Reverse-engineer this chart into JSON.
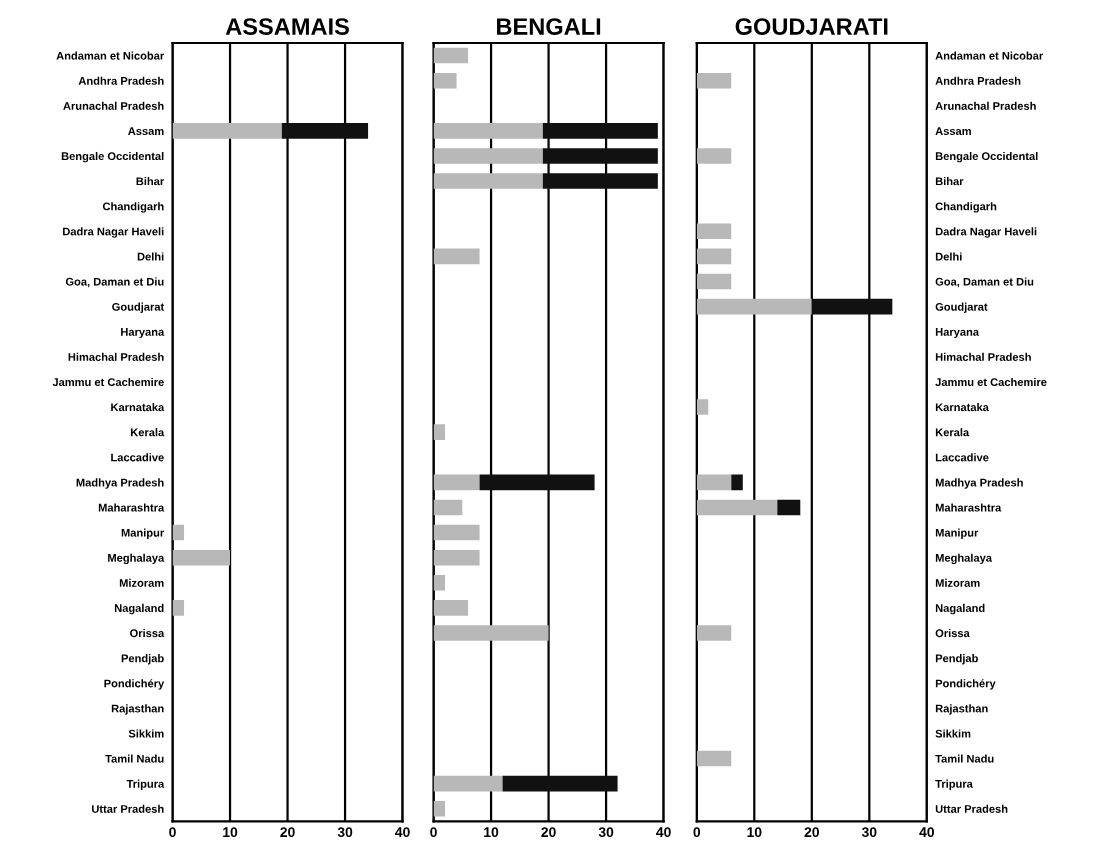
{
  "chart_data": [
    {
      "type": "bar",
      "title": "ASSAMAIS",
      "orientation": "horizontal",
      "stacked": true,
      "grid": "x",
      "categories": [
        "Andaman et Nicobar",
        "Andhra Pradesh",
        "Arunachal Pradesh",
        "Assam",
        "Bengale Occidental",
        "Bihar",
        "Chandigarh",
        "Dadra Nagar Haveli",
        "Delhi",
        "Goa, Daman et Diu",
        "Goudjarat",
        "Haryana",
        "Himachal Pradesh",
        "Jammu et Cachemire",
        "Karnataka",
        "Kerala",
        "Laccadive",
        "Madhya Pradesh",
        "Maharashtra",
        "Manipur",
        "Meghalaya",
        "Mizoram",
        "Nagaland",
        "Orissa",
        "Pendjab",
        "Pondichéry",
        "Rajasthan",
        "Sikkim",
        "Tamil Nadu",
        "Tripura",
        "Uttar Pradesh"
      ],
      "xlim": [
        0,
        40
      ],
      "xticks": [
        0,
        10,
        20,
        30,
        40
      ],
      "series": [
        {
          "color": "#b8b8b8",
          "values": [
            null,
            null,
            null,
            19,
            null,
            null,
            null,
            null,
            null,
            null,
            null,
            null,
            null,
            null,
            null,
            null,
            null,
            null,
            null,
            2,
            10,
            null,
            2,
            null,
            null,
            null,
            null,
            null,
            null,
            null,
            null
          ]
        },
        {
          "color": "#111111",
          "values": [
            null,
            null,
            null,
            15,
            null,
            null,
            null,
            null,
            null,
            null,
            null,
            null,
            null,
            null,
            null,
            null,
            null,
            null,
            null,
            null,
            null,
            null,
            null,
            null,
            null,
            null,
            null,
            null,
            null,
            null,
            null
          ]
        }
      ]
    },
    {
      "type": "bar",
      "title": "BENGALI",
      "orientation": "horizontal",
      "stacked": true,
      "grid": "x",
      "categories": [
        null,
        null,
        null,
        null,
        null,
        null,
        null,
        null,
        null,
        null,
        null,
        null,
        null,
        null,
        null,
        null,
        null,
        null,
        null,
        null,
        null,
        null,
        null,
        null,
        null,
        null,
        null,
        null,
        null,
        null,
        null
      ],
      "xlim": [
        0,
        40
      ],
      "xticks": [
        0,
        10,
        20,
        30,
        40
      ],
      "series": [
        {
          "color": "#b8b8b8",
          "values": [
            6,
            4,
            null,
            19,
            19,
            19,
            null,
            null,
            8,
            null,
            null,
            null,
            null,
            null,
            null,
            2,
            null,
            8,
            5,
            8,
            8,
            2,
            6,
            20,
            null,
            null,
            null,
            null,
            null,
            12,
            2
          ]
        },
        {
          "color": "#111111",
          "values": [
            null,
            null,
            null,
            20,
            20,
            20,
            null,
            null,
            null,
            null,
            null,
            null,
            null,
            null,
            null,
            null,
            null,
            20,
            null,
            null,
            null,
            null,
            null,
            null,
            null,
            null,
            null,
            null,
            null,
            20,
            null
          ]
        }
      ]
    },
    {
      "type": "bar",
      "title": "GOUDJARATI",
      "orientation": "horizontal",
      "stacked": true,
      "grid": "x",
      "categories": [
        "Andaman et Nicobar",
        "Andhra Pradesh",
        "Arunachal Pradesh",
        "Assam",
        "Bengale Occidental",
        "Bihar",
        "Chandigarh",
        "Dadra Nagar Haveli",
        "Delhi",
        "Goa, Daman et Diu",
        "Goudjarat",
        "Haryana",
        "Himachal Pradesh",
        "Jammu et Cachemire",
        "Karnataka",
        "Kerala",
        "Laccadive",
        "Madhya Pradesh",
        "Maharashtra",
        "Manipur",
        "Meghalaya",
        "Mizoram",
        "Nagaland",
        "Orissa",
        "Pendjab",
        "Pondichéry",
        "Rajasthan",
        "Sikkim",
        "Tamil Nadu",
        "Tripura",
        "Uttar Pradesh"
      ],
      "xlim": [
        0,
        40
      ],
      "xticks": [
        0,
        10,
        20,
        30,
        40
      ],
      "series": [
        {
          "color": "#b8b8b8",
          "values": [
            null,
            6,
            null,
            null,
            6,
            null,
            null,
            6,
            6,
            6,
            20,
            null,
            null,
            null,
            2,
            null,
            null,
            6,
            14,
            null,
            null,
            null,
            null,
            6,
            null,
            null,
            null,
            null,
            6,
            null,
            null
          ]
        },
        {
          "color": "#111111",
          "values": [
            null,
            null,
            null,
            null,
            null,
            null,
            null,
            null,
            null,
            null,
            14,
            null,
            null,
            null,
            null,
            null,
            null,
            2,
            4,
            null,
            null,
            null,
            null,
            null,
            null,
            null,
            null,
            null,
            null,
            null,
            null
          ]
        }
      ]
    }
  ]
}
